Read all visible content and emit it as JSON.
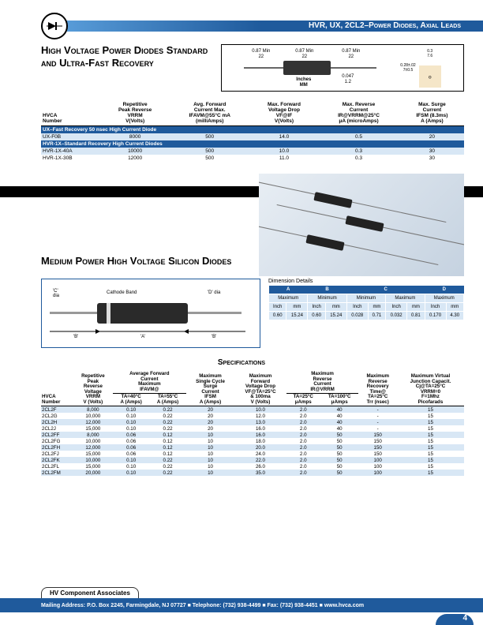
{
  "header": {
    "title": "HVR, UX, 2CL2–Power Diodes, Axial Leads"
  },
  "section1": {
    "heading": "High Voltage Power Diodes Standard and Ultra-Fast Recovery",
    "dims": {
      "lead_left": "0.87 Min\n22",
      "body": "0.87 Min\n22",
      "lead_right": "0.87 Min\n22",
      "inches_mm": "Inches\nMM",
      "dia": "0.047\n1.2",
      "sq_top": "0.3\n7.6",
      "sq_side": "0.28±.02\n7±0.5"
    }
  },
  "table1": {
    "headers": [
      "HVCA\nNumber",
      "Repetitive\nPeak Reverse\nVRRM\nV(Volts)",
      "Avg. Forward\nCurrent Max.\nIFAVM@55°C mA\n(milliAmps)",
      "Max. Forward\nVoltage Drop\nVF@IF\nV(Volts)",
      "Max. Reverse\nCurrent\nIR@VRRM@25°C\nμA (microAmps)",
      "Max. Surge\nCurrent\nIFSM (8.3ms)\nA (Amps)"
    ],
    "section_a": "UX–Fast Recovery 50 nsec High Current Diode",
    "rows_a": [
      [
        "UX-F0B",
        "8000",
        "500",
        "14.0",
        "0.5",
        "20"
      ]
    ],
    "section_b": "HVR-1X–Standard Recovery High Current Diodes",
    "rows_b": [
      [
        "HVR-1X-40A",
        "10000",
        "500",
        "10.0",
        "0.3",
        "30"
      ],
      [
        "HVR-1X-30B",
        "12000",
        "500",
        "11.0",
        "0.3",
        "30"
      ]
    ]
  },
  "section2": {
    "heading": "Medium Power High Voltage Silicon Diodes",
    "diag": {
      "c": "'C'\ndia",
      "d": "'D' dia",
      "cathode": "Cathode Band",
      "b": "'B'",
      "a": "'A'"
    }
  },
  "dim_table": {
    "title": "Dimension Details",
    "cols": [
      "A",
      "B",
      "C",
      "D"
    ],
    "sub": [
      "Maximum",
      "Minimum",
      "Minimum",
      "Maximum",
      "Maximum"
    ],
    "unit_row": [
      "Inch",
      "mm",
      "Inch",
      "mm",
      "Inch",
      "mm",
      "Inch",
      "mm",
      "Inch",
      "mm"
    ],
    "vals": [
      "0.60",
      "15.24",
      "0.60",
      "15.24",
      "0.028",
      "0.71",
      "0.032",
      "0.81",
      "0.170",
      "4.30"
    ]
  },
  "specs_title": "Specifications",
  "table2": {
    "headers": [
      "HVCA\nNumber",
      "Repetitive\nPeak\nReverse\nVoltage\nVRRM\nV (Volts)",
      "Average Forward\nCurrent\nMaximum\nIFAVM@",
      "TA=40°C\nA (Amps)",
      "TA=55°C\nA (Amps)",
      "Maximum\nSingle Cycle\nSurge\nCurrent\nIFSM\nA (Amps)",
      "Maximum\nForward\nVoltage Drop\nVF@TA=25°C\n& 100ma\nV (Volts)",
      "Maximum\nReverse\nCurrent\nIR@VRRM",
      "TA=25°C\nμAmps",
      "TA=100°C\nμAmps",
      "Maximum\nReverse\nRecovery\nTime@\nTA=25°C\nTrr (nsec)",
      "Maximum Virtual\nJunction Capacit.\nCj@TA=25°C\nVRRM=0\nF=1Mhz\nPicofarads"
    ],
    "rows": [
      [
        "2CL2F",
        "8,000",
        "0.10",
        "0.22",
        "20",
        "10.0",
        "2.0",
        "40",
        "-",
        "15"
      ],
      [
        "2CL2G",
        "10,000",
        "0.10",
        "0.22",
        "20",
        "12.0",
        "2.0",
        "40",
        "-",
        "15"
      ],
      [
        "2CL2H",
        "12,000",
        "0.10",
        "0.22",
        "20",
        "13.0",
        "2.0",
        "40",
        "-",
        "15"
      ],
      [
        "2CL2J",
        "15,000",
        "0.10",
        "0.22",
        "20",
        "16.0",
        "2.0",
        "40",
        "-",
        "15"
      ],
      [
        "2CL2FF",
        "8,000",
        "0.06",
        "0.12",
        "10",
        "16.0",
        "2.0",
        "50",
        "150",
        "15"
      ],
      [
        "2CL2FG",
        "10,000",
        "0.06",
        "0.12",
        "10",
        "18.0",
        "2.0",
        "50",
        "150",
        "15"
      ],
      [
        "2CL2FH",
        "12,000",
        "0.06",
        "0.12",
        "10",
        "20.0",
        "2.0",
        "50",
        "150",
        "15"
      ],
      [
        "2CL2FJ",
        "15,000",
        "0.06",
        "0.12",
        "10",
        "24.0",
        "2.0",
        "50",
        "150",
        "15"
      ],
      [
        "2CL2FK",
        "10,000",
        "0.10",
        "0.22",
        "10",
        "22.0",
        "2.0",
        "50",
        "100",
        "15"
      ],
      [
        "2CL2FL",
        "15,000",
        "0.10",
        "0.22",
        "10",
        "26.0",
        "2.0",
        "50",
        "100",
        "15"
      ],
      [
        "2CL2FM",
        "20,000",
        "0.10",
        "0.22",
        "10",
        "35.0",
        "2.0",
        "50",
        "100",
        "15"
      ]
    ]
  },
  "footer": {
    "assoc": "HV Component Associates",
    "addr": "Mailing Address: P.O. Box 2245, Farmingdale, NJ 07727  ■  Telephone: (732) 938-4499  ■  Fax: (732) 938-4451  ■  www.hvca.com",
    "page": "4"
  },
  "colors": {
    "blue": "#1f5a9c",
    "lightblue": "#d8e7f5"
  }
}
